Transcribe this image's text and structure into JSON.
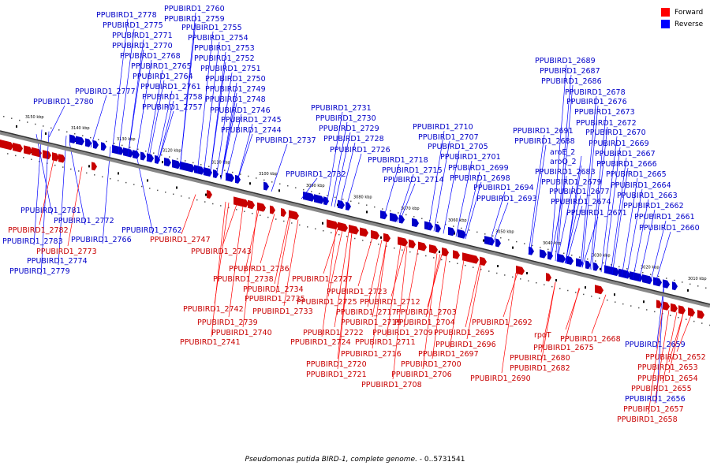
{
  "legend": {
    "forward_label": "Forward",
    "reverse_label": "Reverse",
    "forward_color": "#ff0000",
    "reverse_color": "#0000ff"
  },
  "footer": {
    "title": "Pseudomonas putida BIRD-1, complete genome.",
    "range": " - 0..5731541"
  },
  "scale_ticks": [
    "3150 kbp",
    "3140 kbp",
    "3130 kbp",
    "3120 kbp",
    "3110 kbp",
    "3100 kbp",
    "3090 kbp",
    "3080 kbp",
    "3070 kbp",
    "3060 kbp",
    "3050 kbp",
    "3040 kbp",
    "3030 kbp",
    "3020 kbp",
    "3010 kbp"
  ],
  "reverse_genes": [
    "PPUBIRD1_2778",
    "PPUBIRD1_2760",
    "PPUBIRD1_2759",
    "PPUBIRD1_2775",
    "PPUBIRD1_2755",
    "PPUBIRD1_2771",
    "PPUBIRD1_2754",
    "PPUBIRD1_2770",
    "PPUBIRD1_2753",
    "PPUBIRD1_2768",
    "PPUBIRD1_2752",
    "PPUBIRD1_2765",
    "PPUBIRD1_2751",
    "PPUBIRD1_2764",
    "PPUBIRD1_2750",
    "PPUBIRD1_2777",
    "PPUBIRD1_2761",
    "PPUBIRD1_2749",
    "PPUBIRD1_2780",
    "PPUBIRD1_2758",
    "PPUBIRD1_2748",
    "PPUBIRD1_2757",
    "PPUBIRD1_2746",
    "PPUBIRD1_2745",
    "PPUBIRD1_2744",
    "PPUBIRD1_2737",
    "PPUBIRD1_2731",
    "PPUBIRD1_2730",
    "PPUBIRD1_2729",
    "PPUBIRD1_2728",
    "PPUBIRD1_2726",
    "PPUBIRD1_2732",
    "PPUBIRD1_2710",
    "PPUBIRD1_2707",
    "PPUBIRD1_2705",
    "PPUBIRD1_2701",
    "PPUBIRD1_2718",
    "PPUBIRD1_2715",
    "PPUBIRD1_2699",
    "PPUBIRD1_2714",
    "PPUBIRD1_2698",
    "PPUBIRD1_2694",
    "PPUBIRD1_2693",
    "PPUBIRD1_2689",
    "PPUBIRD1_2687",
    "PPUBIRD1_2686",
    "PPUBIRD1_2678",
    "PPUBIRD1_2676",
    "PPUBIRD1_2673",
    "PPUBIRD1_2672",
    "PPUBIRD1_2691",
    "PPUBIRD1_2670",
    "PPUBIRD1_2688",
    "PPUBIRD1_2669",
    "aroE_2",
    "PPUBIRD1_2667",
    "aroQ_2",
    "PPUBIRD1_2666",
    "PPUBIRD1_2683",
    "PPUBIRD1_2665",
    "PPUBIRD1_2679",
    "PPUBIRD1_2664",
    "PPUBIRD1_2677",
    "PPUBIRD1_2663",
    "PPUBIRD1_2674",
    "PPUBIRD1_2662",
    "PPUBIRD1_2671",
    "PPUBIRD1_2661",
    "PPUBIRD1_2660",
    "PPUBIRD1_2781",
    "PPUBIRD1_2772",
    "PPUBIRD1_2762",
    "PPUBIRD1_2783",
    "PPUBIRD1_2766",
    "PPUBIRD1_2774",
    "PPUBIRD1_2779",
    "PPUBIRD1_2659",
    "PPUBIRD1_2656"
  ],
  "forward_genes": [
    "PPUBIRD1_2782",
    "PPUBIRD1_2747",
    "PPUBIRD1_2773",
    "PPUBIRD1_2743",
    "PPUBIRD1_2736",
    "PPUBIRD1_2738",
    "PPUBIRD1_2727",
    "PPUBIRD1_2734",
    "PPUBIRD1_2723",
    "PPUBIRD1_2735",
    "PPUBIRD1_2725",
    "PPUBIRD1_2712",
    "PPUBIRD1_2742",
    "PPUBIRD1_2733",
    "PPUBIRD1_2717",
    "PPUBIRD1_2703",
    "PPUBIRD1_2739",
    "PPUBIRD1_2719",
    "PPUBIRD1_2704",
    "PPUBIRD1_2692",
    "PPUBIRD1_2740",
    "PPUBIRD1_2722",
    "PPUBIRD1_2709",
    "PPUBIRD1_2695",
    "PPUBIRD1_2741",
    "PPUBIRD1_2724",
    "PPUBIRD1_2711",
    "PPUBIRD1_2696",
    "rpoT",
    "PPUBIRD1_2668",
    "PPUBIRD1_2716",
    "PPUBIRD1_2697",
    "PPUBIRD1_2675",
    "PPUBIRD1_2720",
    "PPUBIRD1_2700",
    "PPUBIRD1_2680",
    "PPUBIRD1_2721",
    "PPUBIRD1_2706",
    "PPUBIRD1_2682",
    "PPUBIRD1_2690",
    "PPUBIRD1_2708",
    "PPUBIRD1_2652",
    "PPUBIRD1_2653",
    "PPUBIRD1_2654",
    "PPUBIRD1_2655",
    "PPUBIRD1_2657",
    "PPUBIRD1_2658"
  ]
}
